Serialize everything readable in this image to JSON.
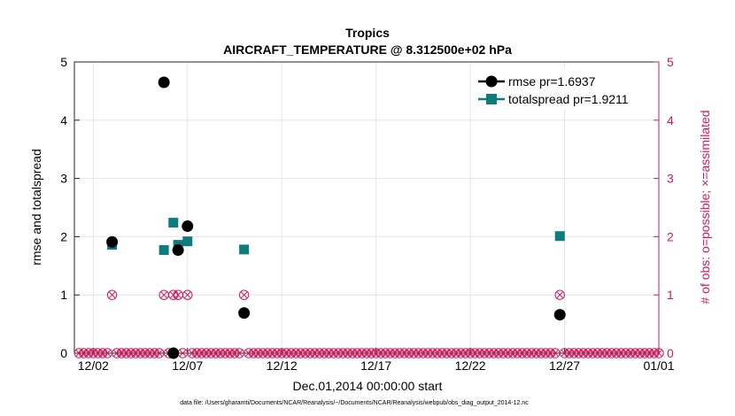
{
  "chart_data": {
    "type": "scatter",
    "title": "Tropics",
    "subtitle": "AIRCRAFT_TEMPERATURE @ 8.312500e+02 hPa",
    "xlabel": "Dec.01,2014 00:00:00 start",
    "ylabel_left": "rmse and totalspread",
    "ylabel_right": "# of obs: o=possible; ×=assimilated",
    "footer": "data file: /Users/gharamti/Documents/NCAR/Reanalysis/~/Documents/NCAR/Reanalysis/webpub/obs_diag_output_2014-12.nc",
    "xlim": [
      0,
      31
    ],
    "ylim": [
      0,
      5
    ],
    "ylim_right": [
      0,
      5
    ],
    "grid": true,
    "x_ticks": [
      {
        "value": 1,
        "label": "12/02"
      },
      {
        "value": 6,
        "label": "12/07"
      },
      {
        "value": 11,
        "label": "12/12"
      },
      {
        "value": 16,
        "label": "12/17"
      },
      {
        "value": 21,
        "label": "12/22"
      },
      {
        "value": 26,
        "label": "12/27"
      },
      {
        "value": 31,
        "label": "01/01"
      }
    ],
    "y_ticks": [
      0,
      1,
      2,
      3,
      4,
      5
    ],
    "y_ticks_right": [
      0,
      1,
      2,
      3,
      4,
      5
    ],
    "colors": {
      "rmse": "#000000",
      "totalspread": "#0e7c7b",
      "obs": "#d6185c",
      "grid": "#e6e6e6"
    },
    "legend": {
      "placement": "top-right",
      "entries": [
        "rmse pr=1.6937",
        "totalspread pr=1.9211"
      ]
    },
    "series": [
      {
        "name": "rmse",
        "marker": "circle",
        "points": [
          {
            "x": 2.0,
            "y": 1.91
          },
          {
            "x": 4.75,
            "y": 4.65
          },
          {
            "x": 5.25,
            "y": 0.0
          },
          {
            "x": 5.5,
            "y": 1.77
          },
          {
            "x": 6.0,
            "y": 2.18
          },
          {
            "x": 9.0,
            "y": 0.69
          },
          {
            "x": 25.75,
            "y": 0.66
          }
        ]
      },
      {
        "name": "totalspread",
        "marker": "square",
        "points": [
          {
            "x": 2.0,
            "y": 1.86
          },
          {
            "x": 4.75,
            "y": 1.77
          },
          {
            "x": 5.25,
            "y": 2.24
          },
          {
            "x": 5.5,
            "y": 1.86
          },
          {
            "x": 6.0,
            "y": 1.92
          },
          {
            "x": 9.0,
            "y": 1.78
          },
          {
            "x": 25.75,
            "y": 2.01
          }
        ]
      },
      {
        "name": "obs_possible_and_assimilated",
        "marker": "circle-x",
        "axis": "right",
        "x_start": 0.25,
        "x_step": 0.25,
        "x_end": 31.0,
        "default_count": 0,
        "nonzero": [
          {
            "x": 2.0,
            "count": 1
          },
          {
            "x": 4.75,
            "count": 1
          },
          {
            "x": 5.25,
            "count": 1
          },
          {
            "x": 5.5,
            "count": 1
          },
          {
            "x": 6.0,
            "count": 1
          },
          {
            "x": 9.0,
            "count": 1
          },
          {
            "x": 25.75,
            "count": 1
          }
        ]
      }
    ]
  }
}
